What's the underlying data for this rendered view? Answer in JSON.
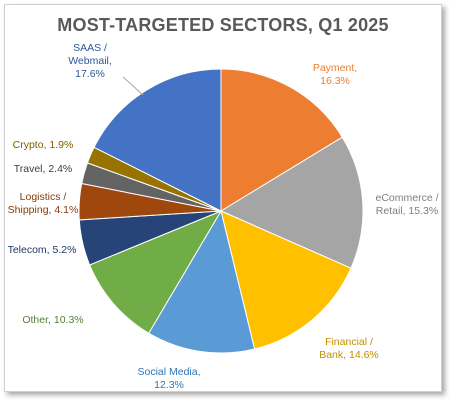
{
  "chart_data": {
    "type": "pie",
    "title": "MOST-TARGETED SECTORS, Q1 2025",
    "slices": [
      {
        "label_lines": [
          "Payment,",
          "16.3%"
        ],
        "name": "Payment",
        "value": 16.3,
        "color": "#ED7D31"
      },
      {
        "label_lines": [
          "eCommerce /",
          "Retail, 15.3%"
        ],
        "name": "eCommerce / Retail",
        "value": 15.3,
        "color": "#A5A5A5",
        "label_color": "#7F7F7F"
      },
      {
        "label_lines": [
          "Financial /",
          "Bank, 14.6%"
        ],
        "name": "Financial / Bank",
        "value": 14.6,
        "color": "#FFC000",
        "label_color": "#BF9000"
      },
      {
        "label_lines": [
          "Social Media,",
          "12.3%"
        ],
        "name": "Social Media",
        "value": 12.3,
        "color": "#5B9BD5",
        "label_color": "#2E75B6"
      },
      {
        "label_lines": [
          "Other, 10.3%"
        ],
        "name": "Other",
        "value": 10.3,
        "color": "#70AD47",
        "label_color": "#548235"
      },
      {
        "label_lines": [
          "Telecom, 5.2%"
        ],
        "name": "Telecom",
        "value": 5.2,
        "color": "#264478",
        "label_color": "#1F3864"
      },
      {
        "label_lines": [
          "Logistics /",
          "Shipping, 4.1%"
        ],
        "name": "Logistics / Shipping",
        "value": 4.1,
        "color": "#9E480E",
        "label_color": "#843C0C"
      },
      {
        "label_lines": [
          "Travel, 2.4%"
        ],
        "name": "Travel",
        "value": 2.4,
        "color": "#636363",
        "label_color": "#404040"
      },
      {
        "label_lines": [
          "Crypto, 1.9%"
        ],
        "name": "Crypto",
        "value": 1.9,
        "color": "#997300",
        "label_color": "#7F6000"
      },
      {
        "label_lines": [
          "SAAS /",
          "Webmail,",
          "17.6%"
        ],
        "name": "SAAS / Webmail",
        "value": 17.6,
        "color": "#4472C4",
        "label_color": "#2F5597"
      }
    ]
  }
}
